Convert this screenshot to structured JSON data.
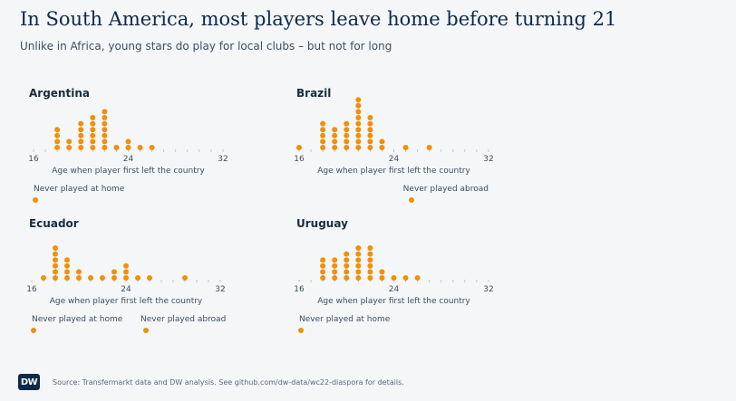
{
  "title": "In South America, most players leave home before turning 21",
  "subtitle": "Unlike in Africa, young stars do play for local clubs – but not for long",
  "source": "Source: Transfermarkt data and DW analysis. See github.com/dw-data/wc22-diaspora for details.",
  "logo_text": "DW",
  "colors": {
    "dot": "#f0900a",
    "axis": "#b8c0c8",
    "text": "#3f4f5f"
  },
  "chart_data": [
    {
      "type": "scatter",
      "title": "Argentina",
      "xlabel": "Age when player first left the country",
      "xlim": [
        16,
        32
      ],
      "x_ticks": [
        16,
        24,
        32
      ],
      "counts": [
        {
          "age": 18,
          "count": 4
        },
        {
          "age": 19,
          "count": 2
        },
        {
          "age": 20,
          "count": 5
        },
        {
          "age": 21,
          "count": 6
        },
        {
          "age": 22,
          "count": 7
        },
        {
          "age": 23,
          "count": 1
        },
        {
          "age": 24,
          "count": 2
        },
        {
          "age": 25,
          "count": 1
        },
        {
          "age": 26,
          "count": 1
        }
      ],
      "extras": [
        {
          "label": "Never played at home",
          "count": 1,
          "side": "left"
        }
      ]
    },
    {
      "type": "scatter",
      "title": "Brazil",
      "xlabel": "Age when player first left the country",
      "xlim": [
        16,
        32
      ],
      "x_ticks": [
        16,
        24,
        32
      ],
      "counts": [
        {
          "age": 16,
          "count": 1
        },
        {
          "age": 18,
          "count": 5
        },
        {
          "age": 19,
          "count": 4
        },
        {
          "age": 20,
          "count": 5
        },
        {
          "age": 21,
          "count": 9
        },
        {
          "age": 22,
          "count": 6
        },
        {
          "age": 23,
          "count": 2
        },
        {
          "age": 25,
          "count": 1
        },
        {
          "age": 27,
          "count": 1
        }
      ],
      "extras": [
        {
          "label": "Never played abroad",
          "count": 1,
          "side": "right"
        }
      ]
    },
    {
      "type": "scatter",
      "title": "Ecuador",
      "xlabel": "Age when player first left the country",
      "xlim": [
        16,
        32
      ],
      "x_ticks": [
        16,
        24,
        32
      ],
      "counts": [
        {
          "age": 17,
          "count": 1
        },
        {
          "age": 18,
          "count": 6
        },
        {
          "age": 19,
          "count": 4
        },
        {
          "age": 20,
          "count": 2
        },
        {
          "age": 21,
          "count": 1
        },
        {
          "age": 22,
          "count": 1
        },
        {
          "age": 23,
          "count": 2
        },
        {
          "age": 24,
          "count": 3
        },
        {
          "age": 25,
          "count": 1
        },
        {
          "age": 26,
          "count": 1
        },
        {
          "age": 29,
          "count": 1
        }
      ],
      "extras": [
        {
          "label": "Never played at home",
          "count": 1,
          "side": "left"
        },
        {
          "label": "Never played abroad",
          "count": 1,
          "side": "middle"
        }
      ]
    },
    {
      "type": "scatter",
      "title": "Uruguay",
      "xlabel": "Age when player first left the country",
      "xlim": [
        16,
        32
      ],
      "x_ticks": [
        16,
        24,
        32
      ],
      "counts": [
        {
          "age": 18,
          "count": 4
        },
        {
          "age": 19,
          "count": 4
        },
        {
          "age": 20,
          "count": 5
        },
        {
          "age": 21,
          "count": 6
        },
        {
          "age": 22,
          "count": 6
        },
        {
          "age": 23,
          "count": 2
        },
        {
          "age": 24,
          "count": 1
        },
        {
          "age": 25,
          "count": 1
        },
        {
          "age": 26,
          "count": 1
        }
      ],
      "extras": [
        {
          "label": "Never played at home",
          "count": 1,
          "side": "left"
        }
      ]
    }
  ]
}
